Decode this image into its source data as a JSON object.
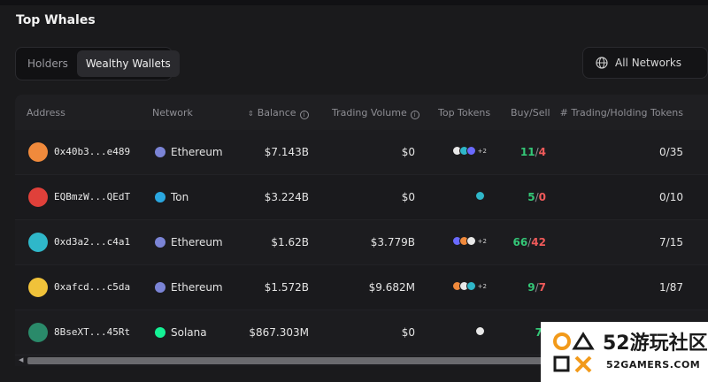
{
  "page": {
    "title": "Top Whales"
  },
  "tabs": [
    {
      "label": "Holders",
      "active": false
    },
    {
      "label": "Wealthy Wallets",
      "active": true
    }
  ],
  "network_filter": {
    "label": "All Networks",
    "icon": "globe-icon"
  },
  "table": {
    "columns": {
      "address": "Address",
      "network": "Network",
      "balance": "Balance",
      "trading_volume": "Trading Volume",
      "top_tokens": "Top Tokens",
      "buy_sell": "Buy/Sell",
      "trading_holding": "# Trading/Holding Tokens"
    },
    "rows": [
      {
        "avatar_color": "#f08a3c",
        "address": "0x40b3...e489",
        "network": "Ethereum",
        "network_color": "#7b84d6",
        "balance": "$7.143B",
        "volume": "$0",
        "tokens_more": "+2",
        "buy": "11",
        "sell": "4",
        "trading_holding": "0/35"
      },
      {
        "avatar_color": "#e0403a",
        "address": "EQBmzW...QEdT",
        "network": "Ton",
        "network_color": "#2aa7e0",
        "balance": "$3.224B",
        "volume": "$0",
        "tokens_more": "",
        "buy": "5",
        "sell": "0",
        "trading_holding": "0/10"
      },
      {
        "avatar_color": "#2fb7c9",
        "address": "0xd3a2...c4a1",
        "network": "Ethereum",
        "network_color": "#7b84d6",
        "balance": "$1.62B",
        "volume": "$3.779B",
        "tokens_more": "+2",
        "buy": "66",
        "sell": "42",
        "trading_holding": "7/15"
      },
      {
        "avatar_color": "#f0c23a",
        "address": "0xafcd...c5da",
        "network": "Ethereum",
        "network_color": "#7b84d6",
        "balance": "$1.572B",
        "volume": "$9.682M",
        "tokens_more": "+2",
        "buy": "9",
        "sell": "7",
        "trading_holding": "1/87"
      },
      {
        "avatar_color": "#2a8a6a",
        "address": "8BseXT...45Rt",
        "network": "Solana",
        "network_color": "#14f195",
        "balance": "$867.303M",
        "volume": "$0",
        "tokens_more": "",
        "buy": "7",
        "sell": "",
        "trading_holding": ""
      }
    ]
  },
  "watermark": {
    "text": "52游玩社区",
    "url": "52GAMERS.COM"
  }
}
